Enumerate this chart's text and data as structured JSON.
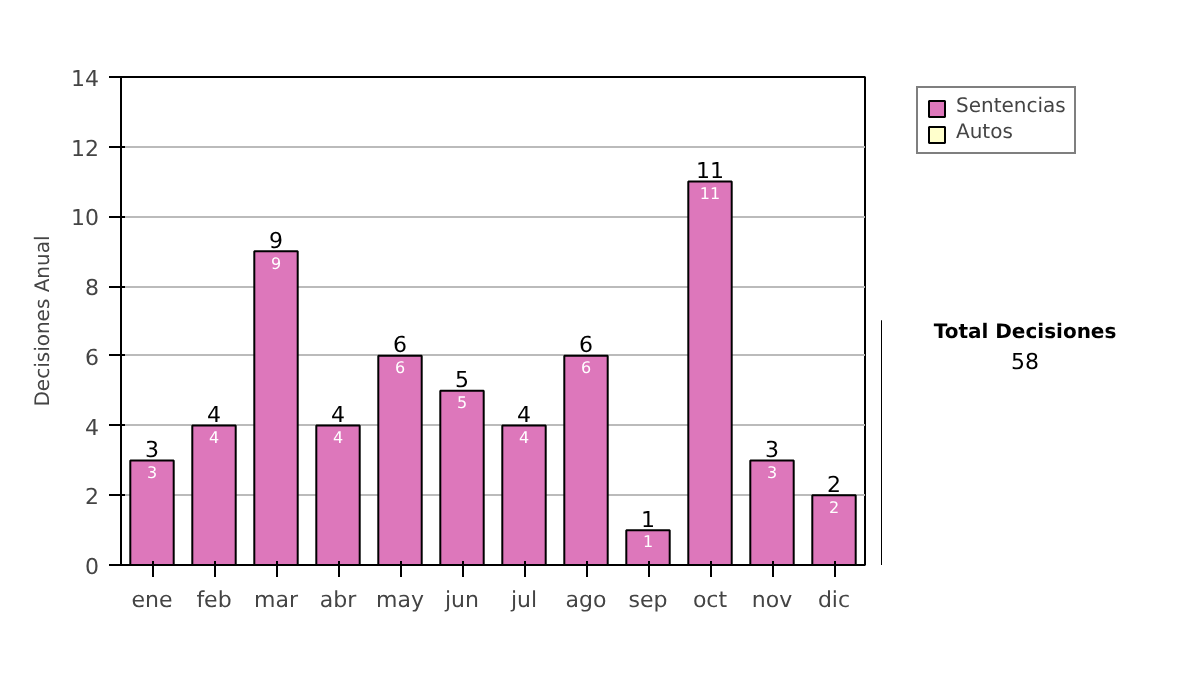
{
  "chart_data": {
    "type": "bar",
    "stacked": true,
    "ylabel": "Decisiones Anual",
    "categories": [
      "ene",
      "feb",
      "mar",
      "abr",
      "may",
      "jun",
      "jul",
      "ago",
      "sep",
      "oct",
      "nov",
      "dic"
    ],
    "series": [
      {
        "name": "Sentencias",
        "color": "#dd77bb",
        "values": [
          3,
          4,
          9,
          4,
          6,
          5,
          4,
          6,
          1,
          11,
          3,
          2
        ],
        "value_labels": [
          "3",
          "4",
          "9",
          "4",
          "6",
          "5",
          "4",
          "6",
          "1",
          "11",
          "3",
          "2"
        ]
      },
      {
        "name": "Autos",
        "color": "#ffffcc",
        "values": [
          0,
          0,
          0,
          0,
          0,
          0,
          0,
          0,
          0,
          0,
          0,
          0
        ]
      }
    ],
    "totals": [
      "3",
      "4",
      "9",
      "4",
      "6",
      "5",
      "4",
      "6",
      "1",
      "11",
      "3",
      "2"
    ],
    "ylim": [
      0,
      14
    ],
    "yticks": [
      0,
      2,
      4,
      6,
      8,
      10,
      12,
      14
    ],
    "grid": "y",
    "legend": "right",
    "annotations": [
      "Total Decisiones",
      "58"
    ]
  }
}
